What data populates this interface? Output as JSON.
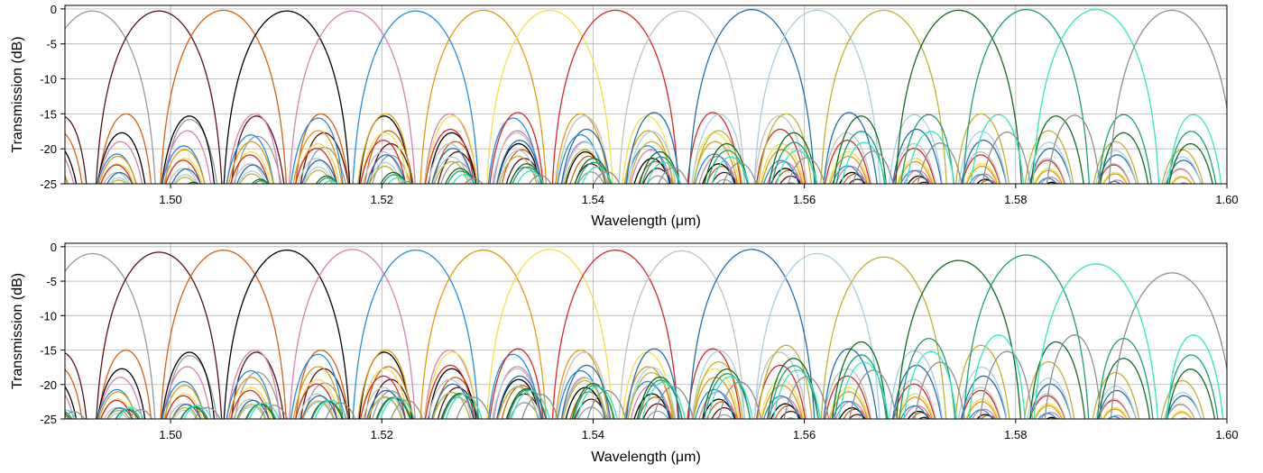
{
  "chart_data": [
    {
      "type": "line",
      "xlabel": "Wavelength (μm)",
      "ylabel": "Transmission (dB)",
      "xlim": [
        1.49,
        1.6
      ],
      "ylim": [
        -25,
        0.5
      ],
      "xticks": [
        1.5,
        1.52,
        1.54,
        1.56,
        1.58,
        1.6
      ],
      "xtick_labels": [
        "1.50",
        "1.52",
        "1.54",
        "1.56",
        "1.58",
        "1.60"
      ],
      "yticks": [
        0,
        -5,
        -10,
        -15,
        -20,
        -25
      ],
      "ytick_labels": [
        "0",
        "-5",
        "-10",
        "-15",
        "-20",
        "-25"
      ],
      "grid": true,
      "channel_spacing_um": 0.0063,
      "series": [
        {
          "color": "#999999",
          "center": 1.4926,
          "peak": -0.3,
          "floor": -14
        },
        {
          "color": "#5a0f14",
          "center": 1.4989,
          "peak": -0.3,
          "floor": -13.5
        },
        {
          "color": "#d95f0e",
          "center": 1.505,
          "peak": -0.2,
          "floor": -13.2
        },
        {
          "color": "#000000",
          "center": 1.511,
          "peak": -0.3,
          "floor": -13.5
        },
        {
          "color": "#d67fb4",
          "center": 1.5172,
          "peak": -0.3,
          "floor": -13.2
        },
        {
          "color": "#1f8fdf",
          "center": 1.5232,
          "peak": -0.3,
          "floor": -13.8
        },
        {
          "color": "#e09b0c",
          "center": 1.5296,
          "peak": -0.2,
          "floor": -13.2
        },
        {
          "color": "#f5e042",
          "center": 1.5359,
          "peak": -0.2,
          "floor": -13.5
        },
        {
          "color": "#d62728",
          "center": 1.5421,
          "peak": -0.2,
          "floor": -13.0
        },
        {
          "color": "#c0c0c0",
          "center": 1.5484,
          "peak": -0.3,
          "floor": -13.5
        },
        {
          "color": "#1f6fb0",
          "center": 1.555,
          "peak": -0.1,
          "floor": -13.0
        },
        {
          "color": "#a6cee3",
          "center": 1.5612,
          "peak": -0.2,
          "floor": -13.3
        },
        {
          "color": "#c2b12a",
          "center": 1.5675,
          "peak": -0.2,
          "floor": -13.2
        },
        {
          "color": "#0f6b1f",
          "center": 1.5746,
          "peak": -0.2,
          "floor": -13.5
        },
        {
          "color": "#1a9e78",
          "center": 1.581,
          "peak": -0.1,
          "floor": -13.3
        },
        {
          "color": "#2ee8c0",
          "center": 1.5876,
          "peak": -0.1,
          "floor": -13.3
        },
        {
          "color": "#8f8f8f",
          "center": 1.5948,
          "peak": -0.2,
          "floor": -13.4
        }
      ]
    },
    {
      "type": "line",
      "xlabel": "Wavelength (μm)",
      "ylabel": "Transmission (dB)",
      "xlim": [
        1.49,
        1.6
      ],
      "ylim": [
        -25,
        0.5
      ],
      "xticks": [
        1.5,
        1.52,
        1.54,
        1.56,
        1.58,
        1.6
      ],
      "xtick_labels": [
        "1.50",
        "1.52",
        "1.54",
        "1.56",
        "1.58",
        "1.60"
      ],
      "yticks": [
        0,
        -5,
        -10,
        -15,
        -20,
        -25
      ],
      "ytick_labels": [
        "0",
        "-5",
        "-10",
        "-15",
        "-20",
        "-25"
      ],
      "grid": true,
      "channel_spacing_um": 0.0063,
      "series": [
        {
          "color": "#999999",
          "center": 1.4926,
          "peak": -1.0,
          "floor": -14
        },
        {
          "color": "#5a0f14",
          "center": 1.4989,
          "peak": -0.8,
          "floor": -13.5
        },
        {
          "color": "#d95f0e",
          "center": 1.505,
          "peak": -0.5,
          "floor": -13.2
        },
        {
          "color": "#000000",
          "center": 1.511,
          "peak": -0.5,
          "floor": -13.5
        },
        {
          "color": "#d67fb4",
          "center": 1.5172,
          "peak": -0.4,
          "floor": -13.2
        },
        {
          "color": "#1f8fdf",
          "center": 1.5232,
          "peak": -0.5,
          "floor": -13.8
        },
        {
          "color": "#e09b0c",
          "center": 1.5296,
          "peak": -0.5,
          "floor": -13.2
        },
        {
          "color": "#f5e042",
          "center": 1.5359,
          "peak": -0.4,
          "floor": -13.5
        },
        {
          "color": "#d62728",
          "center": 1.5421,
          "peak": -0.5,
          "floor": -13.0
        },
        {
          "color": "#c0c0c0",
          "center": 1.5484,
          "peak": -0.6,
          "floor": -13.5
        },
        {
          "color": "#1f6fb0",
          "center": 1.555,
          "peak": -0.4,
          "floor": -13.0
        },
        {
          "color": "#a6cee3",
          "center": 1.5612,
          "peak": -1.0,
          "floor": -13.3
        },
        {
          "color": "#c2b12a",
          "center": 1.5675,
          "peak": -1.5,
          "floor": -12.5
        },
        {
          "color": "#0f6b1f",
          "center": 1.5746,
          "peak": -2.0,
          "floor": -12.0
        },
        {
          "color": "#1a9e78",
          "center": 1.581,
          "peak": -1.2,
          "floor": -11.5
        },
        {
          "color": "#2ee8c0",
          "center": 1.5876,
          "peak": -2.5,
          "floor": -11.0
        },
        {
          "color": "#8f8f8f",
          "center": 1.5948,
          "peak": -3.8,
          "floor": -11.0
        }
      ]
    }
  ]
}
